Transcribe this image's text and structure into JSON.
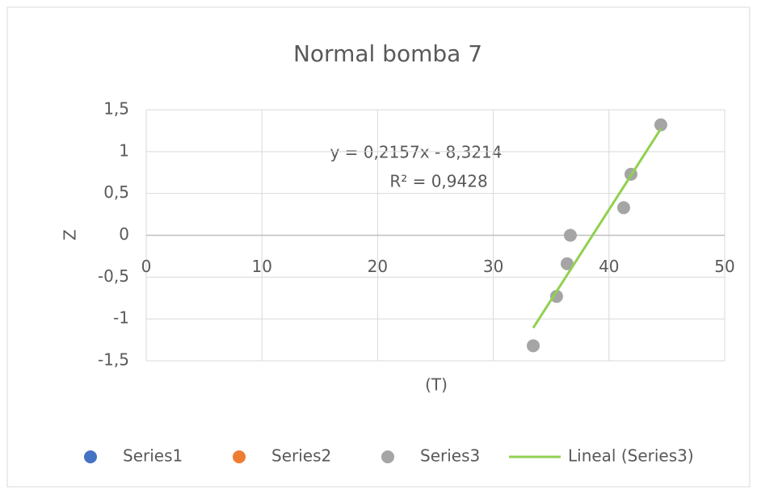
{
  "chart_data": {
    "type": "scatter",
    "title": "Normal bomba 7",
    "x_label": "(T)",
    "y_label": "Z",
    "xlim": [
      0,
      50
    ],
    "xticks": [
      0,
      10,
      20,
      30,
      40,
      50
    ],
    "ylim": [
      -1.5,
      1.5
    ],
    "yticks": [
      {
        "value": -1.5,
        "label": "-1,5"
      },
      -1,
      {
        "value": -0.5,
        "label": "-0,5"
      },
      0,
      {
        "value": 0.5,
        "label": "0,5"
      },
      1,
      {
        "value": 1.5,
        "label": "1,5"
      }
    ],
    "grid": true,
    "legend": "bottom",
    "series": [
      {
        "name": "Series1",
        "color": "#4472c4",
        "x": [],
        "values": []
      },
      {
        "name": "Series2",
        "color": "#ed7d31",
        "x": [],
        "values": []
      },
      {
        "name": "Series3",
        "color": "#a5a5a5",
        "x": [
          33.45,
          35.47,
          36.38,
          36.66,
          41.27,
          41.9,
          44.48
        ],
        "values": [
          -1.32,
          -0.73,
          -0.34,
          0.0,
          0.33,
          0.73,
          1.32
        ]
      }
    ],
    "trendline": {
      "name": "Lineal (Series3)",
      "color": "#92d050",
      "series": 2,
      "slope": 0.2157,
      "intercept": -8.3214,
      "equation": "y = 0,2157x - 8,3214",
      "r2": "R² = 0,9428"
    }
  }
}
